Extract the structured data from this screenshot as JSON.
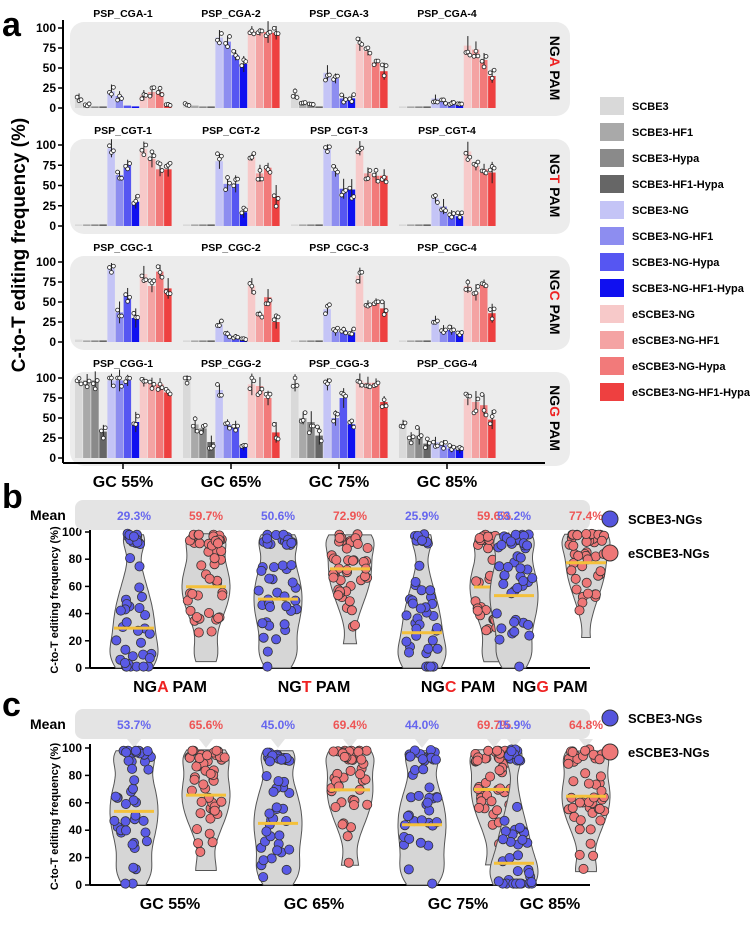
{
  "panel_labels": {
    "a": "a",
    "b": "b",
    "c": "c"
  },
  "legend_a": [
    {
      "name": "SCBE3",
      "color": "#d9d9d9"
    },
    {
      "name": "SCBE3-HF1",
      "color": "#a9a9a9"
    },
    {
      "name": "SCBE3-Hypa",
      "color": "#8a8a8a"
    },
    {
      "name": "SCBE3-HF1-Hypa",
      "color": "#666666"
    },
    {
      "name": "SCBE3-NG",
      "color": "#c4c4f6"
    },
    {
      "name": "SCBE3-NG-HF1",
      "color": "#8d8df0"
    },
    {
      "name": "SCBE3-NG-Hypa",
      "color": "#5656f2"
    },
    {
      "name": "SCBE3-NG-HF1-Hypa",
      "color": "#1010f0"
    },
    {
      "name": "eSCBE3-NG",
      "color": "#f7c9c9"
    },
    {
      "name": "eSCBE3-NG-HF1",
      "color": "#f4a3a3"
    },
    {
      "name": "eSCBE3-NG-Hypa",
      "color": "#f27a7a"
    },
    {
      "name": "eSCBE3-NG-HF1-Hypa",
      "color": "#ee4040"
    }
  ],
  "legend_bc": [
    {
      "name": "SCBE3-NGs",
      "color": "#5555dd"
    },
    {
      "name": "eSCBE3-NGs",
      "color": "#ee7777"
    }
  ],
  "chart_data": [
    {
      "type": "bar",
      "panel": "a",
      "ylabel": "C-to-T editing frequency (%)",
      "ylim": [
        0,
        100
      ],
      "yticks": [
        "0",
        "25",
        "50",
        "75",
        "100"
      ],
      "categories": [
        "GC 55%",
        "GC 65%",
        "GC 75%",
        "GC 85%"
      ],
      "series_names": [
        "SCBE3",
        "SCBE3-HF1",
        "SCBE3-Hypa",
        "SCBE3-HF1-Hypa",
        "SCBE3-NG",
        "SCBE3-NG-HF1",
        "SCBE3-NG-Hypa",
        "SCBE3-NG-HF1-Hypa",
        "eSCBE3-NG",
        "eSCBE3-NG-HF1",
        "eSCBE3-NG-Hypa",
        "eSCBE3-NG-HF1-Hypa"
      ],
      "rows": [
        {
          "pam_prefix": "NG",
          "pam_base": "A",
          "pam_suffix": " PAM",
          "sites": [
            {
              "name": "PSP_CGA-1",
              "values": [
                13,
                4,
                2,
                2,
                21,
                15,
                3,
                2,
                16,
                20,
                20,
                4
              ]
            },
            {
              "name": "PSP_CGA-2",
              "values": [
                4,
                3,
                2,
                2,
                88,
                83,
                66,
                55,
                97,
                95,
                95,
                94
              ]
            },
            {
              "name": "PSP_CGA-3",
              "values": [
                18,
                5,
                4,
                2,
                44,
                37,
                12,
                12,
                80,
                71,
                57,
                46
              ]
            },
            {
              "name": "PSP_CGA-4",
              "values": [
                2,
                2,
                2,
                2,
                12,
                8,
                7,
                6,
                78,
                73,
                60,
                40
              ]
            }
          ]
        },
        {
          "pam_prefix": "NG",
          "pam_base": "T",
          "pam_suffix": " PAM",
          "sites": [
            {
              "name": "PSP_CGT-1",
              "values": [
                2,
                2,
                2,
                2,
                96,
                63,
                76,
                30,
                95,
                83,
                70,
                70
              ]
            },
            {
              "name": "PSP_CGT-2",
              "values": [
                2,
                2,
                2,
                2,
                80,
                52,
                52,
                17,
                85,
                65,
                72,
                37
              ]
            },
            {
              "name": "PSP_CGT-3",
              "values": [
                2,
                2,
                2,
                2,
                95,
                68,
                46,
                45,
                96,
                65,
                62,
                62
              ]
            },
            {
              "name": "PSP_CGT-4",
              "values": [
                2,
                2,
                2,
                2,
                34,
                24,
                14,
                12,
                92,
                74,
                70,
                66
              ]
            }
          ]
        },
        {
          "pam_prefix": "NG",
          "pam_base": "C",
          "pam_suffix": " PAM",
          "sites": [
            {
              "name": "PSP_CGC-1",
              "values": [
                3,
                2,
                2,
                2,
                92,
                37,
                58,
                30,
                85,
                70,
                88,
                67
              ]
            },
            {
              "name": "PSP_CGC-2",
              "values": [
                2,
                2,
                2,
                2,
                22,
                10,
                7,
                4,
                70,
                35,
                56,
                25
              ]
            },
            {
              "name": "PSP_CGC-3",
              "values": [
                2,
                2,
                2,
                2,
                41,
                13,
                15,
                12,
                83,
                48,
                50,
                42
              ]
            },
            {
              "name": "PSP_CGC-4",
              "values": [
                2,
                2,
                2,
                2,
                28,
                16,
                15,
                10,
                70,
                62,
                73,
                36
              ]
            }
          ]
        },
        {
          "pam_prefix": "NG",
          "pam_base": "G",
          "pam_suffix": " PAM",
          "sites": [
            {
              "name": "PSP_CGG-1",
              "values": [
                97,
                97,
                97,
                33,
                97,
                97,
                97,
                45,
                95,
                93,
                92,
                82
              ]
            },
            {
              "name": "PSP_CGG-2",
              "values": [
                97,
                42,
                37,
                20,
                85,
                42,
                40,
                14,
                92,
                90,
                75,
                32
              ]
            },
            {
              "name": "PSP_CGG-3",
              "values": [
                94,
                50,
                45,
                28,
                92,
                50,
                75,
                42,
                97,
                94,
                94,
                70
              ]
            },
            {
              "name": "PSP_CGG-4",
              "values": [
                43,
                25,
                28,
                18,
                20,
                16,
                12,
                10,
                74,
                70,
                66,
                48
              ]
            }
          ]
        }
      ]
    },
    {
      "type": "violin",
      "panel": "b",
      "ylabel": "C-to-T editing frequency (%)",
      "ylim": [
        0,
        100
      ],
      "yticks": [
        "0",
        "20",
        "40",
        "60",
        "80",
        "100"
      ],
      "mean_label": "Mean",
      "groups": [
        {
          "prefix": "NG",
          "base": "A",
          "suffix": " PAM",
          "scbe_mean": "29.3%",
          "escbe_mean": "59.7%",
          "scbe": 29.3,
          "escbe": 59.7
        },
        {
          "prefix": "NG",
          "base": "T",
          "suffix": " PAM",
          "scbe_mean": "50.6%",
          "escbe_mean": "72.9%",
          "scbe": 50.6,
          "escbe": 72.9
        },
        {
          "prefix": "NG",
          "base": "C",
          "suffix": " PAM",
          "scbe_mean": "25.9%",
          "escbe_mean": "59.6%",
          "scbe": 25.9,
          "escbe": 59.6
        },
        {
          "prefix": "NG",
          "base": "G",
          "suffix": " PAM",
          "scbe_mean": "53.2%",
          "escbe_mean": "77.4%",
          "scbe": 53.2,
          "escbe": 77.4
        }
      ]
    },
    {
      "type": "violin",
      "panel": "c",
      "ylabel": "C-to-T editing frequency (%)",
      "ylim": [
        0,
        100
      ],
      "yticks": [
        "0",
        "20",
        "40",
        "60",
        "80",
        "100"
      ],
      "mean_label": "Mean",
      "groups": [
        {
          "prefix": "GC 55%",
          "base": "",
          "suffix": "",
          "scbe_mean": "53.7%",
          "escbe_mean": "65.6%",
          "scbe": 53.7,
          "escbe": 65.6
        },
        {
          "prefix": "GC 65%",
          "base": "",
          "suffix": "",
          "scbe_mean": "45.0%",
          "escbe_mean": "69.4%",
          "scbe": 45.0,
          "escbe": 69.4
        },
        {
          "prefix": "GC 75%",
          "base": "",
          "suffix": "",
          "scbe_mean": "44.0%",
          "escbe_mean": "69.7%",
          "scbe": 44.0,
          "escbe": 69.7
        },
        {
          "prefix": "GC 85%",
          "base": "",
          "suffix": "",
          "scbe_mean": "15.9%",
          "escbe_mean": "64.8%",
          "scbe": 15.9,
          "escbe": 64.8
        }
      ]
    }
  ]
}
